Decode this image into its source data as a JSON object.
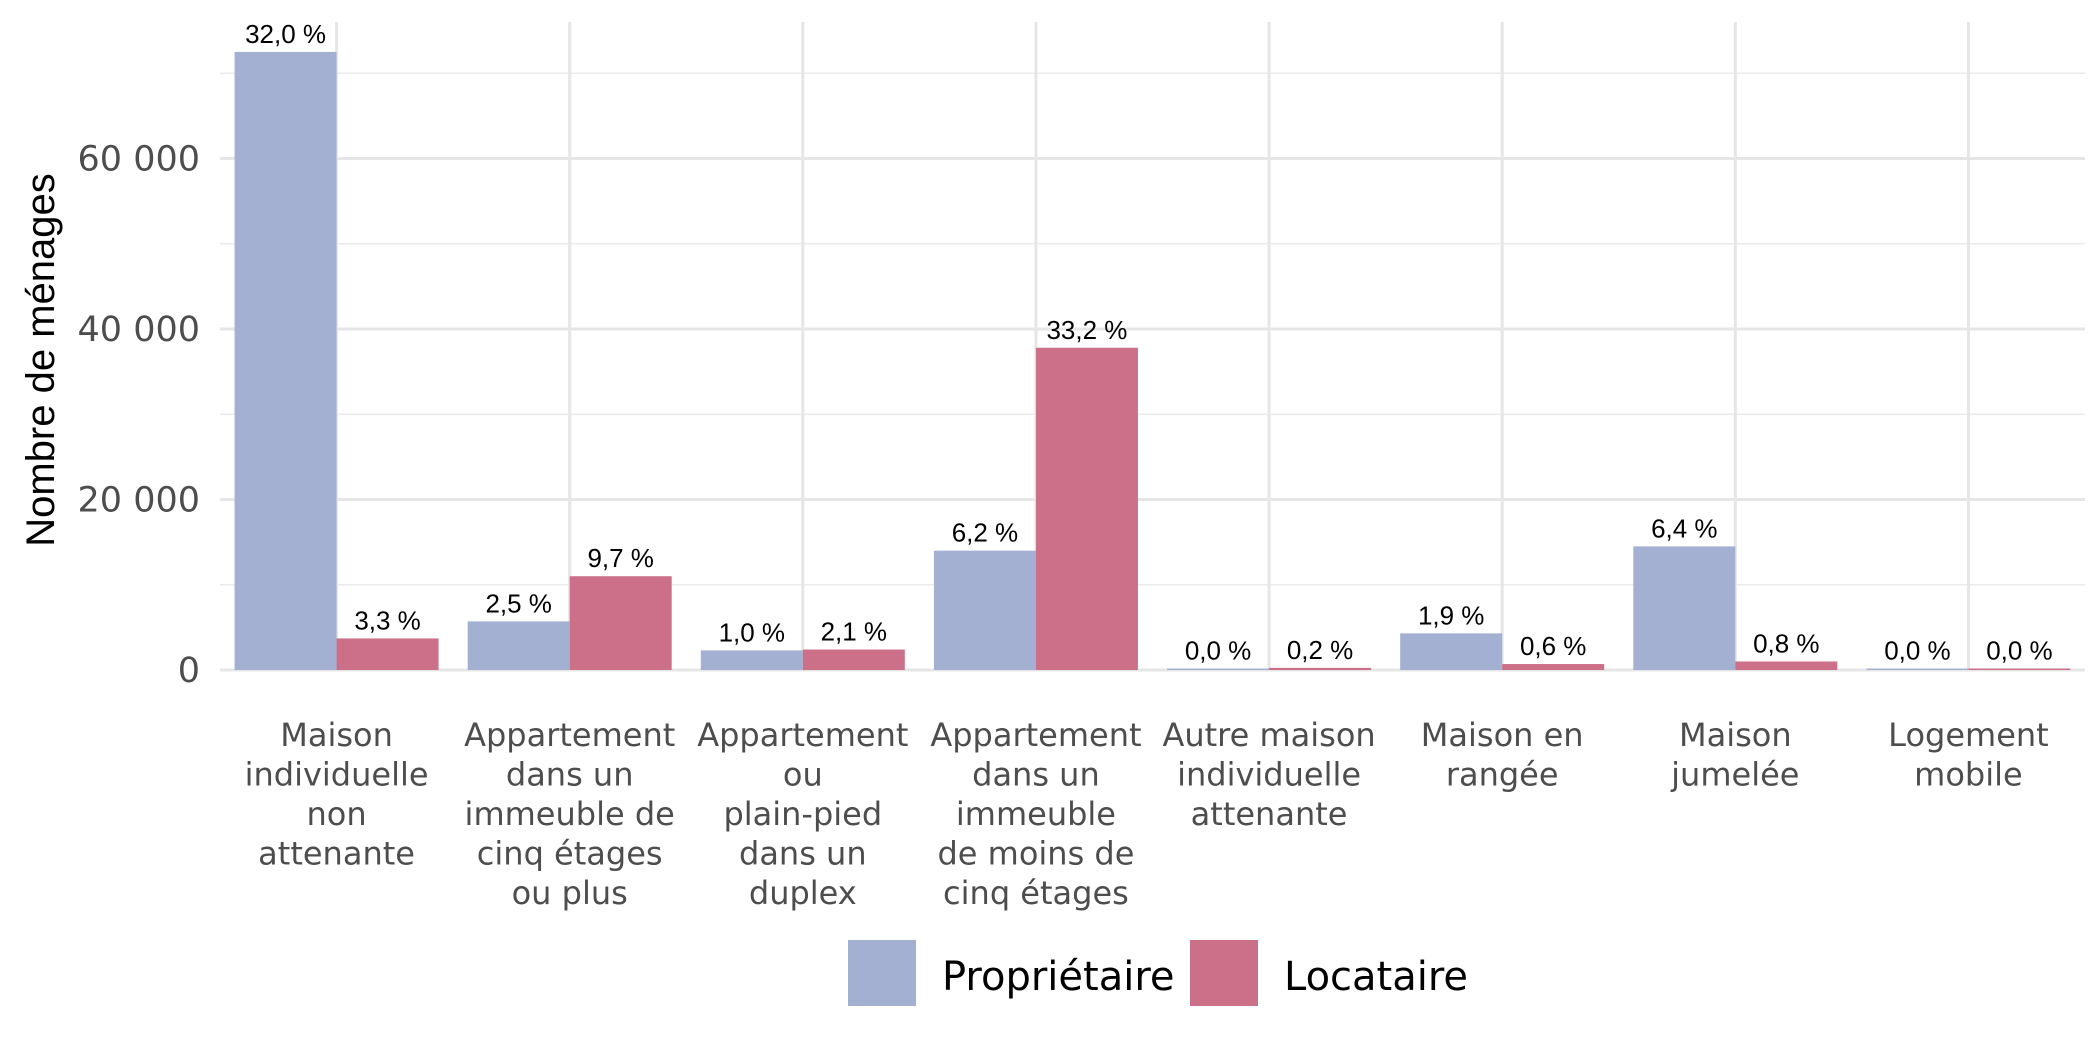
{
  "chart_data": {
    "type": "bar",
    "ylabel": "Nombre de ménages",
    "xlabel": "",
    "ylim": [
      0,
      76000
    ],
    "yticks": [
      0,
      20000,
      40000,
      60000
    ],
    "ytick_labels": [
      "0",
      "20 000",
      "40 000",
      "60 000"
    ],
    "grid": true,
    "legend_position": "bottom",
    "categories": [
      [
        "Maison",
        "individuelle",
        "non",
        "attenante"
      ],
      [
        "Appartement",
        "dans un",
        "immeuble de",
        "cinq étages",
        "ou plus"
      ],
      [
        "Appartement",
        "ou",
        "plain-pied",
        "dans un",
        "duplex"
      ],
      [
        "Appartement",
        "dans un",
        "immeuble",
        "de moins de",
        "cinq étages"
      ],
      [
        "Autre maison",
        "individuelle",
        "attenante"
      ],
      [
        "Maison en",
        "rangée"
      ],
      [
        "Maison",
        "jumelée"
      ],
      [
        "Logement",
        "mobile"
      ]
    ],
    "series": [
      {
        "name": "Propriétaire",
        "color": "#a3b0d2",
        "values": [
          72500,
          5700,
          2300,
          14000,
          150,
          4300,
          14500,
          100
        ],
        "labels": [
          "32,0 %",
          "2,5 %",
          "1,0 %",
          "6,2 %",
          "0,0 %",
          "1,9 %",
          "6,4 %",
          "0,0 %"
        ]
      },
      {
        "name": "Locataire",
        "color": "#cc6f88",
        "values": [
          3700,
          11000,
          2400,
          37800,
          250,
          700,
          1000,
          50
        ],
        "labels": [
          "3,3 %",
          "9,7 %",
          "2,1 %",
          "33,2 %",
          "0,2 %",
          "0,6 %",
          "0,8 %",
          "0,0 %"
        ]
      }
    ]
  }
}
